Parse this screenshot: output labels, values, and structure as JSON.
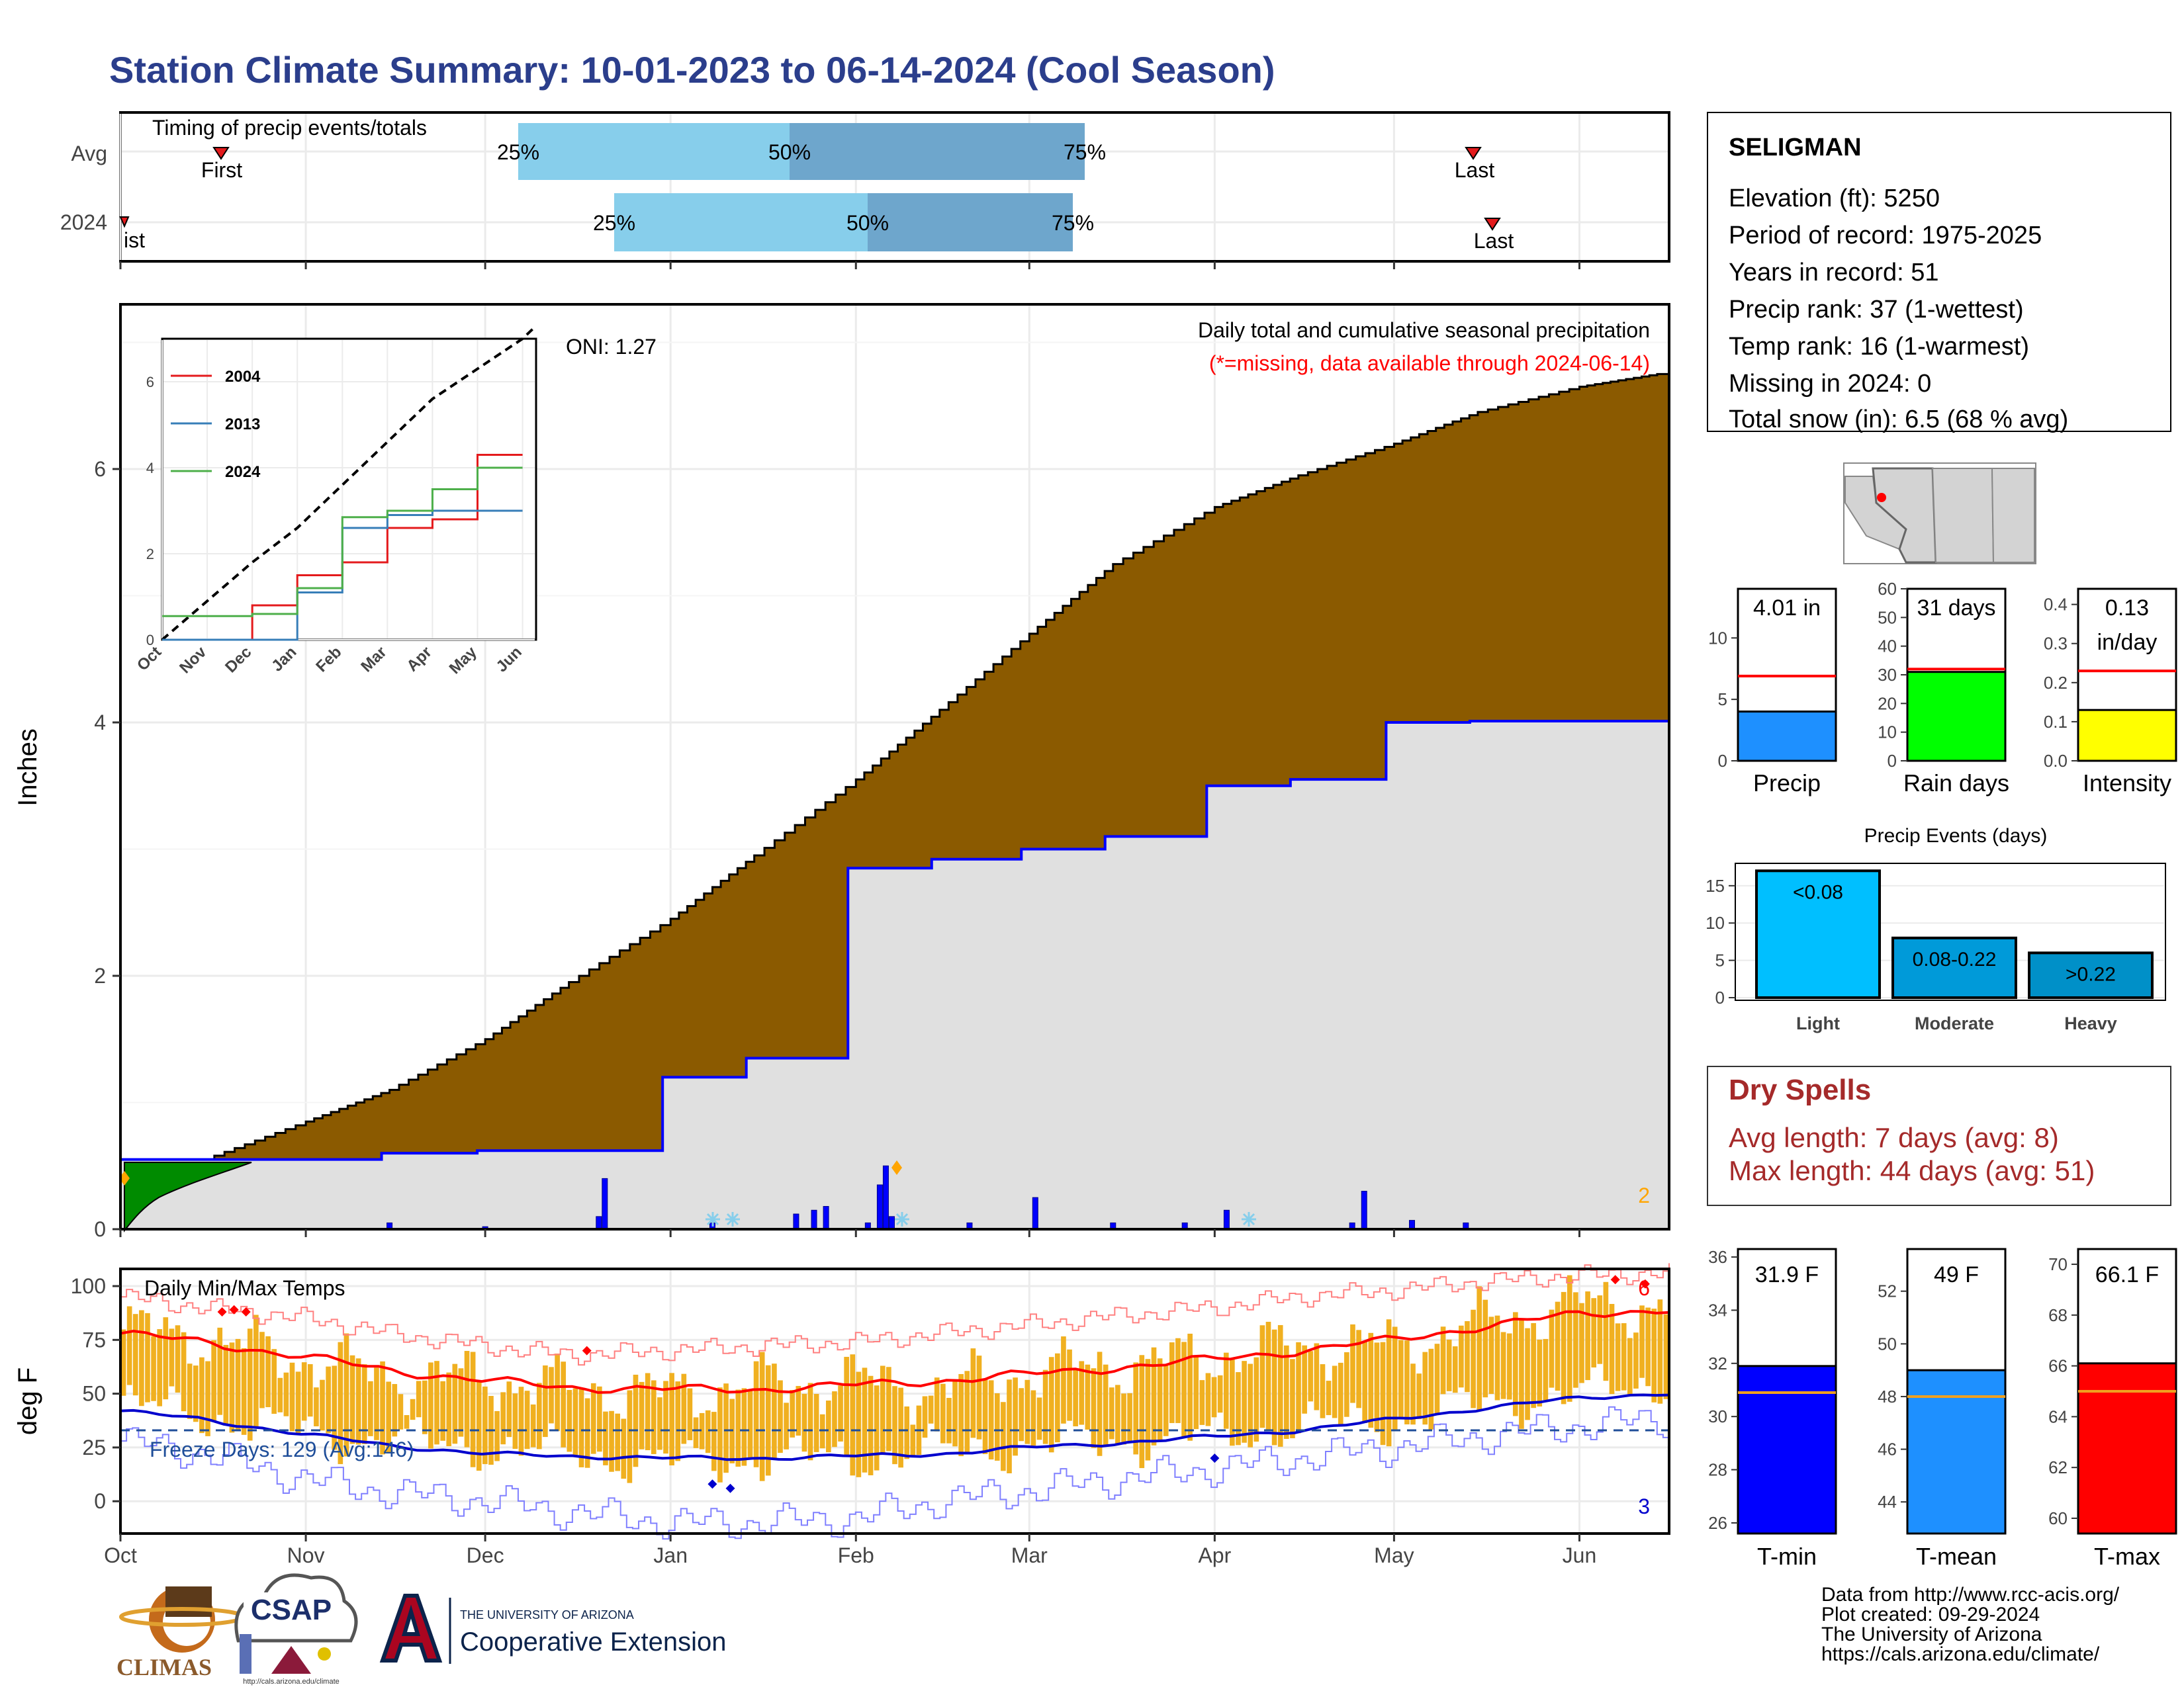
{
  "title": "Station Climate Summary: 10-01-2023 to 06-14-2024 (Cool Season)",
  "months": [
    "Oct",
    "Nov",
    "Dec",
    "Jan",
    "Feb",
    "Mar",
    "Apr",
    "May",
    "Jun"
  ],
  "timing": {
    "label": "Timing of precip events/totals",
    "rows": [
      "Avg",
      "2024"
    ],
    "first": "First",
    "last": "Last",
    "first_2024": "ist",
    "p25": "25%",
    "p50": "50%",
    "p75": "75%"
  },
  "precip": {
    "ylabel": "Inches",
    "oni": "ONI: 1.27",
    "title": "Daily total and cumulative seasonal precipitation",
    "note": "(*=missing, data available through 2024-06-14)",
    "count_label": "2"
  },
  "inset": {
    "months": [
      "Oct",
      "Nov",
      "Dec",
      "Jan",
      "Feb",
      "Mar",
      "Apr",
      "May",
      "Jun"
    ],
    "yticks": [
      "0",
      "2",
      "4",
      "6"
    ],
    "legend": [
      "2004",
      "2013",
      "2024"
    ],
    "colors": [
      "#e41a1c",
      "#377eb8",
      "#4daf4a"
    ]
  },
  "temps": {
    "ylabel": "deg F",
    "title": "Daily Min/Max Temps",
    "freeze": "Freeze Days: 129 (Avg:146)",
    "max_count": "6",
    "min_count": "3"
  },
  "station": {
    "name": "SELIGMAN",
    "lines": [
      "Elevation (ft): 5250",
      "Period of record: 1975-2025",
      "Years in record: 51",
      "Precip rank: 37 (1-wettest)",
      "Temp rank: 16 (1-warmest)",
      "Missing in 2024: 0",
      "Total snow (in): 6.5 (68 % avg)"
    ]
  },
  "mini": [
    {
      "label": "Precip",
      "value_text": "4.01 in",
      "ticks": [
        "0",
        "5",
        "10"
      ]
    },
    {
      "label": "Rain days",
      "value_text": "31 days",
      "ticks": [
        "0",
        "10",
        "20",
        "30",
        "40",
        "50",
        "60"
      ]
    },
    {
      "label": "Intensity",
      "value_text": "0.13",
      "value_text2": "in/day",
      "ticks": [
        "0.0",
        "0.1",
        "0.2",
        "0.3",
        "0.4"
      ]
    }
  ],
  "events": {
    "title": "Precip Events (days)",
    "ticks": [
      "0",
      "5",
      "10",
      "15"
    ],
    "cats": [
      "Light",
      "Moderate",
      "Heavy"
    ],
    "labels": [
      "<0.08",
      "0.08-0.22",
      ">0.22"
    ]
  },
  "dry": {
    "title": "Dry Spells",
    "avg": "Avg length: 7 days (avg: 8)",
    "max": "Max length: 44 days (avg: 51)"
  },
  "tbars": [
    {
      "label": "T-min",
      "value_text": "31.9 F",
      "ticks": [
        "26",
        "28",
        "30",
        "32",
        "34",
        "36"
      ],
      "color": "#0000ff"
    },
    {
      "label": "T-mean",
      "value_text": "49 F",
      "ticks": [
        "44",
        "46",
        "48",
        "50",
        "52"
      ],
      "color": "#1e90ff"
    },
    {
      "label": "T-max",
      "value_text": "66.1 F",
      "ticks": [
        "60",
        "62",
        "64",
        "66",
        "68",
        "70"
      ],
      "color": "#ff0000"
    }
  ],
  "logos": {
    "climas": "CLIMAS",
    "csap": "CSAP",
    "csap_url": "http://cals.arizona.edu/climate",
    "ua_small": "THE UNIVERSITY OF ARIZONA",
    "ua_big": "Cooperative Extension"
  },
  "footer": [
    "Data from http://www.rcc-acis.org/",
    "Plot created: 09-29-2024",
    "The University of Arizona",
    "https://cals.arizona.edu/climate/"
  ],
  "chart_data": [
    {
      "type": "area",
      "name": "cumulative precipitation",
      "ylim": [
        0,
        7.3
      ],
      "x": [
        "2023-10-01",
        "2023-10-15",
        "2023-11-01",
        "2023-11-15",
        "2023-12-01",
        "2023-12-15",
        "2024-01-01",
        "2024-01-15",
        "2024-02-01",
        "2024-02-15",
        "2024-03-01",
        "2024-03-15",
        "2024-04-01",
        "2024-04-15",
        "2024-05-01",
        "2024-05-15",
        "2024-06-01",
        "2024-06-14"
      ],
      "series": [
        {
          "name": "Avg",
          "values": [
            0.0,
            0.55,
            0.85,
            1.1,
            1.5,
            1.95,
            2.45,
            2.95,
            3.55,
            4.1,
            4.7,
            5.25,
            5.7,
            5.95,
            6.2,
            6.45,
            6.65,
            6.75
          ]
        },
        {
          "name": "2024",
          "values": [
            0.55,
            0.55,
            0.55,
            0.6,
            0.62,
            0.62,
            1.2,
            1.35,
            2.85,
            2.92,
            3.0,
            3.1,
            3.5,
            3.55,
            4.0,
            4.01,
            4.01,
            4.01
          ]
        }
      ]
    },
    {
      "type": "bar",
      "name": "daily precipitation",
      "x": [
        "2023-11-15",
        "2023-12-01",
        "2023-12-20",
        "2023-12-21",
        "2024-01-08",
        "2024-01-22",
        "2024-01-25",
        "2024-01-27",
        "2024-02-03",
        "2024-02-05",
        "2024-02-06",
        "2024-02-07",
        "2024-02-20",
        "2024-03-02",
        "2024-03-15",
        "2024-03-27",
        "2024-04-03",
        "2024-04-24",
        "2024-04-26",
        "2024-05-04",
        "2024-05-13"
      ],
      "values": [
        0.05,
        0.02,
        0.1,
        0.4,
        0.05,
        0.12,
        0.15,
        0.18,
        0.05,
        0.35,
        0.5,
        0.1,
        0.05,
        0.25,
        0.05,
        0.05,
        0.15,
        0.05,
        0.3,
        0.07,
        0.05
      ]
    },
    {
      "type": "line",
      "name": "inset cumulative",
      "x": [
        "Oct",
        "Nov",
        "Dec",
        "Jan",
        "Feb",
        "Mar",
        "Apr",
        "May",
        "Jun"
      ],
      "ylim": [
        0,
        7
      ],
      "series": [
        {
          "name": "avg",
          "values": [
            0.0,
            0.9,
            1.8,
            2.6,
            3.6,
            4.6,
            5.6,
            6.3,
            7.0
          ]
        },
        {
          "name": "2004",
          "values": [
            0.0,
            0.0,
            0.8,
            1.5,
            1.8,
            2.6,
            2.8,
            4.3,
            4.3
          ]
        },
        {
          "name": "2013",
          "values": [
            0.0,
            0.0,
            0.0,
            1.1,
            2.6,
            2.9,
            3.0,
            3.0,
            3.0
          ]
        },
        {
          "name": "2024",
          "values": [
            0.55,
            0.55,
            0.6,
            1.2,
            2.85,
            3.0,
            3.5,
            4.0,
            4.0
          ]
        }
      ]
    },
    {
      "type": "line",
      "name": "daily temps",
      "x": [
        "2023-10-01",
        "2023-10-15",
        "2023-11-01",
        "2023-11-15",
        "2023-12-01",
        "2023-12-15",
        "2024-01-01",
        "2024-01-15",
        "2024-02-01",
        "2024-02-15",
        "2024-03-01",
        "2024-03-15",
        "2024-04-01",
        "2024-04-15",
        "2024-05-01",
        "2024-05-15",
        "2024-06-01",
        "2024-06-14"
      ],
      "ylim": [
        -15,
        108
      ],
      "series": [
        {
          "name": "avg max",
          "values": [
            78,
            74,
            67,
            61,
            56,
            53,
            52,
            52,
            54,
            56,
            59,
            62,
            66,
            70,
            75,
            81,
            87,
            89
          ]
        },
        {
          "name": "avg min",
          "values": [
            42,
            38,
            31,
            26,
            22,
            21,
            20,
            20,
            21,
            22,
            25,
            27,
            30,
            33,
            38,
            43,
            48,
            50
          ]
        },
        {
          "name": "record max",
          "values": [
            95,
            90,
            85,
            78,
            72,
            68,
            70,
            72,
            74,
            78,
            82,
            86,
            90,
            95,
            98,
            102,
            105,
            106
          ]
        },
        {
          "name": "record min",
          "values": [
            28,
            22,
            10,
            4,
            0,
            -5,
            -10,
            -10,
            -8,
            0,
            5,
            10,
            15,
            20,
            25,
            30,
            35,
            38
          ]
        },
        {
          "name": "obs max",
          "values": [
            80,
            76,
            66,
            58,
            57,
            53,
            50,
            54,
            56,
            52,
            60,
            63,
            67,
            72,
            72,
            82,
            92,
            90
          ]
        },
        {
          "name": "obs min",
          "values": [
            45,
            40,
            32,
            28,
            25,
            22,
            18,
            20,
            20,
            23,
            26,
            28,
            30,
            35,
            37,
            45,
            50,
            55
          ]
        }
      ]
    },
    {
      "type": "bar",
      "name": "season summaries",
      "categories": [
        "Precip",
        "Rain days",
        "Intensity",
        "T-min",
        "T-mean",
        "T-max"
      ],
      "series": [
        {
          "name": "2024",
          "values": [
            4.01,
            31,
            0.13,
            31.9,
            49,
            66.1
          ]
        },
        {
          "name": "avg",
          "values": [
            6.9,
            32,
            0.23,
            30.9,
            48,
            65
          ]
        }
      ]
    },
    {
      "type": "bar",
      "name": "Precip Events (days)",
      "categories": [
        "Light",
        "Moderate",
        "Heavy"
      ],
      "values": [
        17,
        8,
        6
      ],
      "ylim": [
        0,
        17
      ]
    }
  ]
}
